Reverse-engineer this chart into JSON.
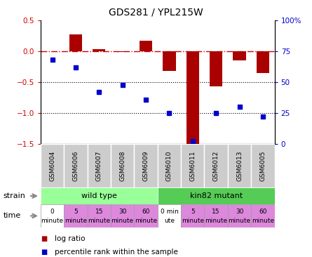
{
  "title": "GDS281 / YPL215W",
  "samples": [
    "GSM6004",
    "GSM6006",
    "GSM6007",
    "GSM6008",
    "GSM6009",
    "GSM6010",
    "GSM6011",
    "GSM6012",
    "GSM6013",
    "GSM6005"
  ],
  "log_ratio": [
    0.0,
    0.28,
    0.04,
    -0.01,
    0.17,
    -0.32,
    -1.52,
    -0.57,
    -0.15,
    -0.35
  ],
  "percentile": [
    68,
    62,
    42,
    48,
    36,
    25,
    2,
    25,
    30,
    22
  ],
  "bar_color": "#aa0000",
  "dot_color": "#0000cc",
  "ylim_left": [
    -1.5,
    0.5
  ],
  "ylim_right": [
    0,
    100
  ],
  "yticks_left": [
    0.5,
    0.0,
    -0.5,
    -1.0,
    -1.5
  ],
  "yticks_right": [
    100,
    75,
    50,
    25,
    0
  ],
  "hline_y": 0,
  "hline_color": "#cc0000",
  "dotted_lines": [
    -0.5,
    -1.0
  ],
  "strain_wt_label": "wild type",
  "strain_mut_label": "kin82 mutant",
  "strain_wt_color": "#99ff99",
  "strain_mut_color": "#55cc55",
  "time_labels": [
    [
      "0",
      "minute"
    ],
    [
      "5",
      "minute"
    ],
    [
      "15",
      "minute"
    ],
    [
      "30",
      "minute"
    ],
    [
      "60",
      "minute"
    ],
    [
      "0 min",
      "ute"
    ],
    [
      "5",
      "minute"
    ],
    [
      "15",
      "minute"
    ],
    [
      "30",
      "minute"
    ],
    [
      "60",
      "minute"
    ]
  ],
  "time_col_colors": [
    "#ffffff",
    "#dd88dd",
    "#dd88dd",
    "#dd88dd",
    "#dd88dd",
    "#ffffff",
    "#dd88dd",
    "#dd88dd",
    "#dd88dd",
    "#dd88dd"
  ],
  "sample_bg_color": "#cccccc",
  "bg_color": "#ffffff",
  "tick_color_left": "#cc0000",
  "tick_color_right": "#0000cc",
  "legend_red_label": "log ratio",
  "legend_blue_label": "percentile rank within the sample",
  "border_color": "#999999"
}
